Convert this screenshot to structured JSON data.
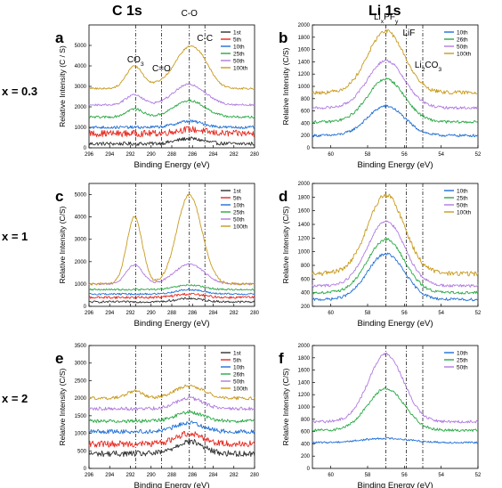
{
  "figure": {
    "column_titles": [
      "C 1s",
      "Li 1s"
    ],
    "row_labels": [
      "x = 0.3",
      "x = 1",
      "x = 2"
    ]
  },
  "colors": {
    "1st": "#303030",
    "5th": "#e8281e",
    "10th": "#1f6fd6",
    "25th": "#2aa845",
    "26th": "#2aa845",
    "50th": "#b07ae0",
    "100th": "#c89a1e"
  },
  "chart_data": [
    {
      "id": "a",
      "type": "line",
      "panel_label": "a",
      "xlabel": "Binding Energy (eV)",
      "ylabel": "Relative Intensity (C / S)",
      "xlim": [
        296,
        280
      ],
      "ylim": [
        0,
        6000
      ],
      "xticks": [
        296,
        294,
        292,
        290,
        288,
        286,
        284,
        282,
        280
      ],
      "yticks": [
        0,
        1000,
        2000,
        3000,
        4000,
        5000
      ],
      "legend": "top-right",
      "annotations": [
        {
          "text": "CO3",
          "x": 291.5
        },
        {
          "text": "C=O",
          "x": 289.0
        },
        {
          "text": "C-O",
          "x": 286.3
        },
        {
          "text": "C-C",
          "x": 284.8
        }
      ],
      "vlines": [
        291.5,
        289.0,
        286.3,
        284.8
      ],
      "series": [
        {
          "name": "1st",
          "base": 200,
          "noise": 90,
          "peaks": [
            [
              286.3,
              250,
              1.3
            ]
          ]
        },
        {
          "name": "5th",
          "base": 700,
          "noise": 160,
          "peaks": [
            [
              286.3,
              200,
              1.3
            ]
          ]
        },
        {
          "name": "10th",
          "base": 1000,
          "noise": 70,
          "peaks": [
            [
              286.3,
              300,
              1.3
            ]
          ]
        },
        {
          "name": "25th",
          "base": 1500,
          "noise": 55,
          "peaks": [
            [
              291.6,
              400,
              0.8
            ],
            [
              286.3,
              800,
              1.5
            ]
          ]
        },
        {
          "name": "50th",
          "base": 2100,
          "noise": 50,
          "peaks": [
            [
              291.6,
              500,
              0.8
            ],
            [
              286.3,
              1000,
              1.5
            ]
          ]
        },
        {
          "name": "100th",
          "base": 2900,
          "noise": 45,
          "peaks": [
            [
              291.6,
              1100,
              0.8
            ],
            [
              289.3,
              150,
              0.8
            ],
            [
              286.3,
              2000,
              1.4
            ],
            [
              284.8,
              300,
              0.8
            ]
          ]
        }
      ]
    },
    {
      "id": "b",
      "type": "line",
      "panel_label": "b",
      "xlabel": "Binding Energy (eV)",
      "ylabel": "Relative Intensity (C/S)",
      "xlim": [
        61,
        52
      ],
      "ylim": [
        0,
        2000
      ],
      "xticks": [
        60,
        58,
        56,
        54,
        52
      ],
      "yticks": [
        0,
        200,
        400,
        600,
        800,
        1000,
        1200,
        1400,
        1600,
        1800,
        2000
      ],
      "legend": "top-right",
      "annotations": [
        {
          "text": "LixPFy",
          "x": 57.0
        },
        {
          "text": "LiF",
          "x": 55.9
        },
        {
          "text": "Li2CO3",
          "x": 55.0
        }
      ],
      "vlines": [
        57.0,
        55.9,
        55.0
      ],
      "series": [
        {
          "name": "10th",
          "base": 200,
          "noise": 22,
          "peaks": [
            [
              57.0,
              480,
              1.0
            ]
          ]
        },
        {
          "name": "26th",
          "base": 420,
          "noise": 22,
          "peaks": [
            [
              57.0,
              700,
              1.0
            ]
          ]
        },
        {
          "name": "50th",
          "base": 650,
          "noise": 22,
          "peaks": [
            [
              57.0,
              770,
              1.0
            ]
          ]
        },
        {
          "name": "100th",
          "base": 900,
          "noise": 30,
          "peaks": [
            [
              57.0,
              1000,
              1.0
            ]
          ]
        }
      ]
    },
    {
      "id": "c",
      "type": "line",
      "panel_label": "c",
      "xlabel": "Binding Energy (eV)",
      "ylabel": "Relative Intensity (C/S)",
      "xlim": [
        296,
        280
      ],
      "ylim": [
        0,
        5500
      ],
      "xticks": [
        296,
        294,
        292,
        290,
        288,
        286,
        284,
        282,
        280
      ],
      "yticks": [
        0,
        1000,
        2000,
        3000,
        4000,
        5000
      ],
      "legend": "top-right",
      "annotations": [],
      "vlines": [
        291.5,
        289.0,
        286.3,
        284.8
      ],
      "series": [
        {
          "name": "1st",
          "base": 200,
          "noise": 45,
          "peaks": [
            [
              286.3,
              150,
              1.3
            ]
          ]
        },
        {
          "name": "5th",
          "base": 400,
          "noise": 55,
          "peaks": [
            [
              286.3,
              150,
              1.3
            ]
          ]
        },
        {
          "name": "10th",
          "base": 550,
          "noise": 40,
          "peaks": [
            [
              286.3,
              200,
              1.3
            ]
          ]
        },
        {
          "name": "25th",
          "base": 750,
          "noise": 40,
          "peaks": [
            [
              286.3,
              200,
              1.3
            ]
          ]
        },
        {
          "name": "50th",
          "base": 1000,
          "noise": 40,
          "peaks": [
            [
              291.6,
              850,
              0.8
            ],
            [
              286.3,
              900,
              1.4
            ]
          ]
        },
        {
          "name": "100th",
          "base": 1000,
          "noise": 50,
          "peaks": [
            [
              291.6,
              3000,
              0.75
            ],
            [
              286.3,
              4000,
              1.2
            ]
          ]
        }
      ]
    },
    {
      "id": "d",
      "type": "line",
      "panel_label": "d",
      "xlabel": "Binding Energy (eV)",
      "ylabel": "Relative Intensity (C/S)",
      "xlim": [
        61,
        52
      ],
      "ylim": [
        200,
        2000
      ],
      "xticks": [
        60,
        58,
        56,
        54,
        52
      ],
      "yticks": [
        200,
        400,
        600,
        800,
        1000,
        1200,
        1400,
        1600,
        1800,
        2000
      ],
      "legend": "top-right",
      "annotations": [],
      "vlines": [
        57.0,
        55.9,
        55.0
      ],
      "series": [
        {
          "name": "10th",
          "base": 300,
          "noise": 20,
          "peaks": [
            [
              57.0,
              670,
              1.0
            ]
          ]
        },
        {
          "name": "25th",
          "base": 400,
          "noise": 20,
          "peaks": [
            [
              57.0,
              780,
              1.0
            ]
          ]
        },
        {
          "name": "50th",
          "base": 500,
          "noise": 20,
          "peaks": [
            [
              57.0,
              950,
              1.0
            ]
          ]
        },
        {
          "name": "100th",
          "base": 680,
          "noise": 35,
          "peaks": [
            [
              57.0,
              1150,
              1.0
            ]
          ]
        }
      ]
    },
    {
      "id": "e",
      "type": "line",
      "panel_label": "e",
      "xlabel": "Binding Energy (eV)",
      "ylabel": "Relative Intensity (C/S)",
      "xlim": [
        296,
        280
      ],
      "ylim": [
        0,
        3500
      ],
      "xticks": [
        296,
        294,
        292,
        290,
        288,
        286,
        284,
        282,
        280
      ],
      "yticks": [
        0,
        500,
        1000,
        1500,
        2000,
        2500,
        3000,
        3500
      ],
      "legend": "top-right",
      "annotations": [],
      "vlines": [
        291.5,
        289.0,
        286.3,
        284.8
      ],
      "series": [
        {
          "name": "1st",
          "base": 420,
          "noise": 85,
          "peaks": [
            [
              286.3,
              350,
              1.3
            ]
          ]
        },
        {
          "name": "5th",
          "base": 700,
          "noise": 90,
          "peaks": [
            [
              286.3,
              300,
              1.3
            ]
          ]
        },
        {
          "name": "10th",
          "base": 1050,
          "noise": 60,
          "peaks": [
            [
              286.3,
              250,
              1.3
            ]
          ]
        },
        {
          "name": "26th",
          "base": 1350,
          "noise": 50,
          "peaks": [
            [
              286.3,
              250,
              1.3
            ]
          ]
        },
        {
          "name": "50th",
          "base": 1700,
          "noise": 50,
          "peaks": [
            [
              286.3,
              300,
              1.3
            ]
          ]
        },
        {
          "name": "100th",
          "base": 2000,
          "noise": 45,
          "peaks": [
            [
              291.6,
              200,
              0.8
            ],
            [
              286.3,
              350,
              1.4
            ]
          ]
        }
      ]
    },
    {
      "id": "f",
      "type": "line",
      "panel_label": "f",
      "xlabel": "Binding Energy (eV)",
      "ylabel": "Relative Intensity (C/S)",
      "xlim": [
        61,
        52
      ],
      "ylim": [
        0,
        2000
      ],
      "xticks": [
        60,
        58,
        56,
        54,
        52
      ],
      "yticks": [
        0,
        200,
        400,
        600,
        800,
        1000,
        1200,
        1400,
        1600,
        1800,
        2000
      ],
      "legend": "top-right",
      "annotations": [],
      "vlines": [
        57.0,
        55.9,
        55.0
      ],
      "series": [
        {
          "name": "10th",
          "base": 420,
          "noise": 15,
          "peaks": [
            [
              57.0,
              70,
              1.3
            ]
          ]
        },
        {
          "name": "25th",
          "base": 620,
          "noise": 22,
          "peaks": [
            [
              57.0,
              680,
              1.0
            ]
          ]
        },
        {
          "name": "50th",
          "base": 760,
          "noise": 22,
          "peaks": [
            [
              57.0,
              1100,
              0.95
            ]
          ]
        }
      ]
    }
  ]
}
